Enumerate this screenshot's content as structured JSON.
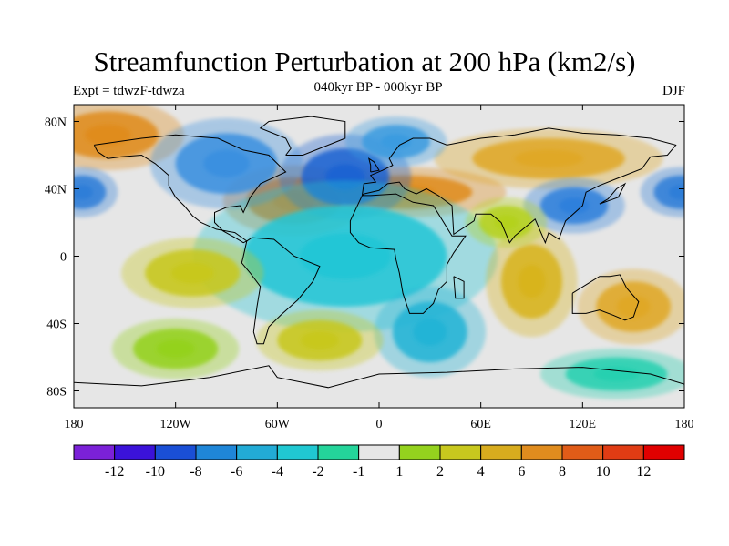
{
  "title": "Streamfunction Perturbation at 200 hPa (km2/s)",
  "experiment_label": "Expt = tdwzF-tdwza",
  "period_label": "040kyr BP - 000kyr BP",
  "season_label": "DJF",
  "map": {
    "lon_range": [
      -180,
      180
    ],
    "lat_range": [
      -90,
      90
    ],
    "lon_ticks": [
      {
        "value": -180,
        "label": "180"
      },
      {
        "value": -120,
        "label": "120W"
      },
      {
        "value": -60,
        "label": "60W"
      },
      {
        "value": 0,
        "label": "0"
      },
      {
        "value": 60,
        "label": "60E"
      },
      {
        "value": 120,
        "label": "120E"
      },
      {
        "value": 180,
        "label": "180"
      }
    ],
    "lat_ticks": [
      {
        "value": 80,
        "label": "80N"
      },
      {
        "value": 40,
        "label": "40N"
      },
      {
        "value": 0,
        "label": "0"
      },
      {
        "value": -40,
        "label": "40S"
      },
      {
        "value": -80,
        "label": "80S"
      }
    ],
    "background_color": "#e6e6e6",
    "features": [
      {
        "lon": -50,
        "lat": 33,
        "rx": 28,
        "ry": 14,
        "level": 7,
        "color": "#e0801a"
      },
      {
        "lon": 15,
        "lat": 38,
        "rx": 40,
        "ry": 10,
        "level": 6,
        "color": "#e08c1e"
      },
      {
        "lon": -160,
        "lat": 72,
        "rx": 30,
        "ry": 14,
        "level": 6,
        "color": "#e08c1e"
      },
      {
        "lon": 100,
        "lat": 58,
        "rx": 45,
        "ry": 12,
        "level": 5,
        "color": "#e0a828"
      },
      {
        "lon": -20,
        "lat": 47,
        "rx": 26,
        "ry": 17,
        "level": -7,
        "color": "#1f63d2"
      },
      {
        "lon": -90,
        "lat": 55,
        "rx": 30,
        "ry": 18,
        "level": -6,
        "color": "#3b90e0"
      },
      {
        "lon": 10,
        "lat": 68,
        "rx": 20,
        "ry": 10,
        "level": -5,
        "color": "#3b9be0"
      },
      {
        "lon": 115,
        "lat": 30,
        "rx": 20,
        "ry": 11,
        "level": -7,
        "color": "#2f80dc"
      },
      {
        "lon": 178,
        "lat": 38,
        "rx": 16,
        "ry": 10,
        "level": -7,
        "color": "#2f7ed8"
      },
      {
        "lon": -175,
        "lat": 38,
        "rx": 14,
        "ry": 10,
        "level": -7,
        "color": "#2f7ed8"
      },
      {
        "lon": -20,
        "lat": 0,
        "rx": 60,
        "ry": 30,
        "level": -3,
        "color": "#20c6d6"
      },
      {
        "lon": 30,
        "lat": -45,
        "rx": 22,
        "ry": 18,
        "level": -4,
        "color": "#22b4d6"
      },
      {
        "lon": -110,
        "lat": -10,
        "rx": 28,
        "ry": 14,
        "level": 4,
        "color": "#c8c81e"
      },
      {
        "lon": -35,
        "lat": -50,
        "rx": 25,
        "ry": 12,
        "level": 4,
        "color": "#c8c81e"
      },
      {
        "lon": 150,
        "lat": -30,
        "rx": 22,
        "ry": 15,
        "level": 6,
        "color": "#e0a828"
      },
      {
        "lon": 90,
        "lat": -15,
        "rx": 18,
        "ry": 22,
        "level": 4,
        "color": "#d8b41e"
      },
      {
        "lon": -120,
        "lat": -55,
        "rx": 25,
        "ry": 12,
        "level": 2,
        "color": "#94d21e"
      },
      {
        "lon": 75,
        "lat": 20,
        "rx": 16,
        "ry": 10,
        "level": 3,
        "color": "#b4d21e"
      },
      {
        "lon": 140,
        "lat": -70,
        "rx": 30,
        "ry": 10,
        "level": -2,
        "color": "#26d0b0"
      }
    ]
  },
  "colorbar": {
    "colors": [
      "#7b21d8",
      "#3b12d9",
      "#1a4fd6",
      "#1f86d8",
      "#22abd6",
      "#20c8d2",
      "#24d49a",
      "#e6e6e6",
      "#94d21e",
      "#c8c81e",
      "#d8ac1e",
      "#e08c1e",
      "#e05c18",
      "#e03c14",
      "#e00000"
    ],
    "labels": [
      "-12",
      "-10",
      "-8",
      "-6",
      "-4",
      "-2",
      "-1",
      "1",
      "2",
      "4",
      "6",
      "8",
      "10",
      "12"
    ]
  }
}
